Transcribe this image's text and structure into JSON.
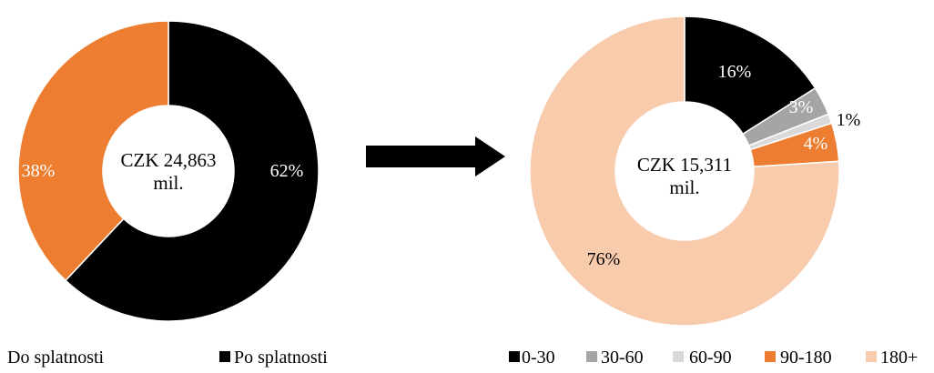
{
  "chart_data": [
    {
      "type": "pie",
      "center_label_line1": "CZK 24,863",
      "center_label_line2": "mil.",
      "segments": [
        {
          "name": "Po splatnosti",
          "value": 62,
          "label": "62%",
          "color": "#000000",
          "label_color": "#ffffff"
        },
        {
          "name": "Do splatnosti",
          "value": 38,
          "label": "38%",
          "color": "#ED7D31",
          "label_color": "#ffffff"
        }
      ],
      "legend": [
        {
          "name": "Do splatnosti",
          "color": "#ED7D31",
          "marker_visible": false
        },
        {
          "name": "Po splatnosti",
          "color": "#000000",
          "marker_visible": true
        }
      ]
    },
    {
      "type": "pie",
      "center_label_line1": "CZK 15,311",
      "center_label_line2": "mil.",
      "segments": [
        {
          "name": "0-30",
          "value": 16,
          "label": "16%",
          "color": "#000000",
          "label_color": "#ffffff"
        },
        {
          "name": "30-60",
          "value": 3,
          "label": "3%",
          "color": "#A5A5A5",
          "label_color": "#ffffff"
        },
        {
          "name": "60-90",
          "value": 1,
          "label": "1%",
          "color": "#D9D9D9",
          "label_color": "#000000"
        },
        {
          "name": "90-180",
          "value": 4,
          "label": "4%",
          "color": "#ED7D31",
          "label_color": "#ffffff"
        },
        {
          "name": "180+",
          "value": 76,
          "label": "76%",
          "color": "#F8CBAD",
          "label_color": "#000000"
        }
      ],
      "legend": [
        {
          "name": "0-30",
          "color": "#000000",
          "marker_visible": true
        },
        {
          "name": "30-60",
          "color": "#A5A5A5",
          "marker_visible": true
        },
        {
          "name": "60-90",
          "color": "#D9D9D9",
          "marker_visible": true
        },
        {
          "name": "90-180",
          "color": "#ED7D31",
          "marker_visible": true
        },
        {
          "name": "180+",
          "color": "#F8CBAD",
          "marker_visible": true
        }
      ]
    }
  ],
  "arrow": {
    "icon": "right-arrow-icon",
    "color": "#000000"
  }
}
